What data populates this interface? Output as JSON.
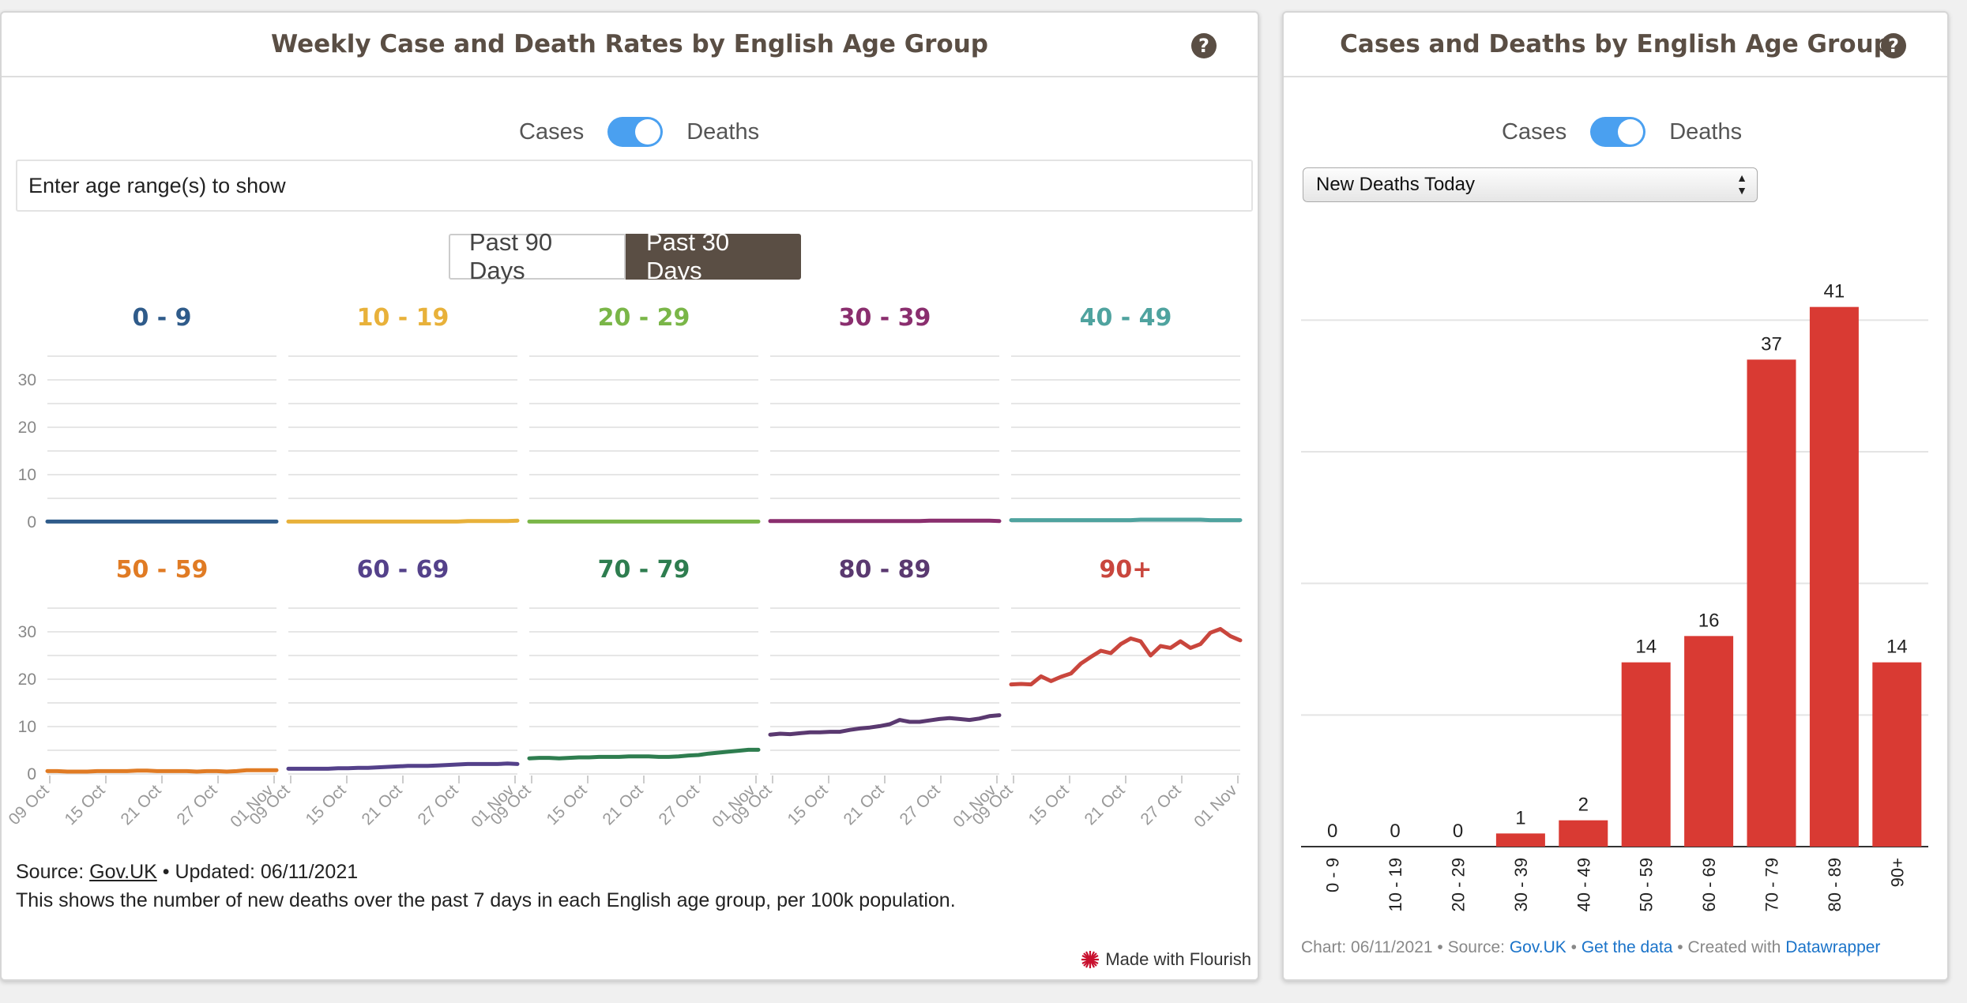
{
  "left_panel": {
    "title": "Weekly Case and Death Rates by English Age Group",
    "help": "?",
    "toggle": {
      "left": "Cases",
      "right": "Deaths",
      "state": "Deaths"
    },
    "filter_placeholder": "Enter age range(s) to show",
    "range_buttons": [
      "Past 90 Days",
      "Past 30 Days"
    ],
    "active_range": "Past 30 Days",
    "source_label": "Source:",
    "source_link": "Gov.UK",
    "updated": "• Updated: 06/11/2021",
    "description": "This shows the number of new deaths over the past 7 days in each English age group, per 100k population.",
    "made_with": "Made with Flourish"
  },
  "right_panel": {
    "title": "Cases and Deaths by English Age Group",
    "help": "?",
    "toggle": {
      "left": "Cases",
      "right": "Deaths",
      "state": "Deaths"
    },
    "select_value": "New Deaths Today",
    "footer": {
      "chart": "Chart: 06/11/2021",
      "source_label": "• Source:",
      "source_link": "Gov.UK",
      "get_data": "Get the data",
      "created_with": "• Created with",
      "tool": "Datawrapper",
      "sep": "•"
    }
  },
  "chart_data": [
    {
      "type": "line",
      "title": "",
      "y_ticks": [
        0,
        10,
        20,
        30
      ],
      "ylim": [
        0,
        35
      ],
      "x_ticks": [
        "09 Oct",
        "15 Oct",
        "21 Oct",
        "27 Oct",
        "01 Nov"
      ],
      "grid": true,
      "series": [
        {
          "name": "0 - 9",
          "color": "#2f5b8a",
          "values": [
            0.1,
            0.1,
            0.1,
            0.1,
            0.1,
            0.1,
            0.1,
            0.1,
            0.1,
            0.1,
            0.1,
            0.1,
            0.1,
            0.1,
            0.1,
            0.1,
            0.1,
            0.1,
            0.1,
            0.1,
            0.1,
            0.1,
            0.1,
            0.1
          ]
        },
        {
          "name": "10 - 19",
          "color": "#e8b13a",
          "values": [
            0.1,
            0.1,
            0.1,
            0.1,
            0.1,
            0.1,
            0.1,
            0.1,
            0.1,
            0.1,
            0.1,
            0.1,
            0.1,
            0.1,
            0.1,
            0.1,
            0.1,
            0.1,
            0.2,
            0.2,
            0.2,
            0.2,
            0.2,
            0.3
          ]
        },
        {
          "name": "20 - 29",
          "color": "#7ab648",
          "values": [
            0.1,
            0.1,
            0.1,
            0.1,
            0.1,
            0.1,
            0.1,
            0.1,
            0.1,
            0.1,
            0.1,
            0.1,
            0.1,
            0.1,
            0.1,
            0.1,
            0.1,
            0.1,
            0.1,
            0.1,
            0.1,
            0.1,
            0.1,
            0.1
          ]
        },
        {
          "name": "30 - 39",
          "color": "#8a2e6e",
          "values": [
            0.2,
            0.2,
            0.2,
            0.2,
            0.2,
            0.2,
            0.2,
            0.2,
            0.2,
            0.2,
            0.2,
            0.2,
            0.2,
            0.2,
            0.2,
            0.2,
            0.3,
            0.3,
            0.3,
            0.3,
            0.3,
            0.3,
            0.3,
            0.2
          ]
        },
        {
          "name": "40 - 49",
          "color": "#4fa39f",
          "values": [
            0.4,
            0.4,
            0.4,
            0.4,
            0.4,
            0.4,
            0.4,
            0.4,
            0.4,
            0.4,
            0.4,
            0.4,
            0.4,
            0.5,
            0.5,
            0.5,
            0.5,
            0.5,
            0.5,
            0.5,
            0.4,
            0.4,
            0.4,
            0.4
          ]
        },
        {
          "name": "50 - 59",
          "color": "#e07b24",
          "values": [
            0.6,
            0.6,
            0.5,
            0.5,
            0.5,
            0.6,
            0.6,
            0.6,
            0.6,
            0.7,
            0.7,
            0.6,
            0.6,
            0.6,
            0.6,
            0.5,
            0.6,
            0.6,
            0.5,
            0.6,
            0.8,
            0.8,
            0.8,
            0.8
          ]
        },
        {
          "name": "60 - 69",
          "color": "#54418a",
          "values": [
            1.1,
            1.1,
            1.1,
            1.1,
            1.1,
            1.2,
            1.2,
            1.3,
            1.3,
            1.4,
            1.5,
            1.6,
            1.7,
            1.7,
            1.7,
            1.8,
            1.9,
            2.0,
            2.1,
            2.1,
            2.1,
            2.1,
            2.2,
            2.1
          ]
        },
        {
          "name": "70 - 79",
          "color": "#2e7d4f",
          "values": [
            3.3,
            3.4,
            3.4,
            3.3,
            3.4,
            3.5,
            3.5,
            3.6,
            3.6,
            3.6,
            3.7,
            3.7,
            3.7,
            3.6,
            3.6,
            3.7,
            3.9,
            4.0,
            4.3,
            4.5,
            4.7,
            4.9,
            5.1,
            5.1
          ]
        },
        {
          "name": "80 - 89",
          "color": "#5a3970",
          "values": [
            8.3,
            8.5,
            8.4,
            8.6,
            8.8,
            8.8,
            8.9,
            8.9,
            9.3,
            9.6,
            9.8,
            10.1,
            10.5,
            11.4,
            11.0,
            11.0,
            11.3,
            11.6,
            11.8,
            11.6,
            11.4,
            11.7,
            12.2,
            12.4
          ]
        },
        {
          "name": "90+",
          "color": "#c9463d",
          "values": [
            18.9,
            19.0,
            18.9,
            20.6,
            19.6,
            20.5,
            21.2,
            23.3,
            24.7,
            26.0,
            25.5,
            27.4,
            28.6,
            28.0,
            25.0,
            27.0,
            26.6,
            28.0,
            26.6,
            27.4,
            29.8,
            30.6,
            29.1,
            28.2
          ]
        }
      ]
    },
    {
      "type": "bar",
      "title": "",
      "categories": [
        "0 - 9",
        "10 - 19",
        "20 - 29",
        "30 - 39",
        "40 - 49",
        "50 - 59",
        "60 - 69",
        "70 - 79",
        "80 - 89",
        "90+"
      ],
      "values": [
        0,
        0,
        0,
        1,
        2,
        14,
        16,
        37,
        41,
        14
      ],
      "ylim": [
        0,
        45
      ],
      "grid": true,
      "color": "#d93a33"
    }
  ]
}
